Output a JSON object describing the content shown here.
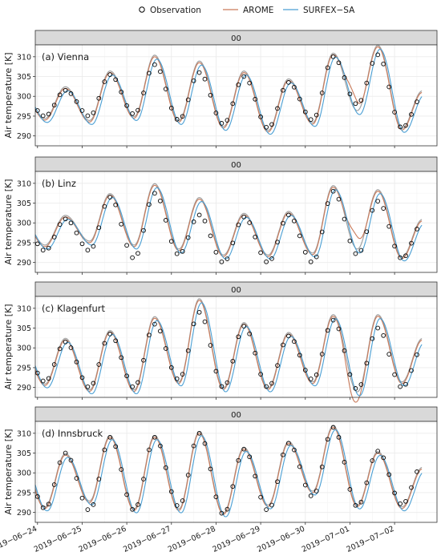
{
  "legend": {
    "observation_label": "Observation",
    "arome_label": "AROME",
    "surfex_label": "SURFEX−SA"
  },
  "colors": {
    "observation": "#000000",
    "arome": "#c97a5a",
    "surfex": "#4a9fd4",
    "grey_model": "#8a8a8a",
    "strip_bg": "#d9d9d9",
    "grid": "#ebebeb"
  },
  "chart_data": {
    "type": "line",
    "facet_strip_label": "00",
    "ylabel": "Air temperature [K]",
    "x_tick_labels": [
      "2019−06−24",
      "2019−06−25",
      "2019−06−26",
      "2019−06−27",
      "2019−06−28",
      "2019−06−29",
      "2019−06−30",
      "2019−07−01",
      "2019−07−02"
    ],
    "x_days": [
      0,
      1,
      2,
      3,
      4,
      5,
      6,
      7,
      8
    ],
    "xlim_days": [
      -0.05,
      8.95
    ],
    "y_ticks": [
      290,
      295,
      300,
      305,
      310
    ],
    "ylim": [
      287.5,
      313
    ],
    "grid": true,
    "legend_position": "top",
    "series_names": [
      "Observation",
      "AROME",
      "SURFEX−SA"
    ],
    "panels": [
      {
        "label": "(a) Vienna",
        "min": [
          295,
          295,
          295.5,
          294,
          293,
          292,
          294,
          298,
          292
        ],
        "max": [
          301.5,
          305.5,
          308,
          306,
          305,
          303.5,
          310,
          310.5,
          300
        ],
        "model_max_offset": [
          0.5,
          0.5,
          2,
          2.5,
          1,
          0.5,
          0.5,
          2,
          1
        ],
        "model_min_offset": [
          -1,
          -1.5,
          -1,
          -0.5,
          -1,
          -1,
          -1,
          -2,
          -0.5
        ],
        "arome_bump_day": 7.05,
        "arome_bump": 4
      },
      {
        "label": "(b) Linz",
        "min": [
          293,
          293,
          291,
          292,
          290,
          290,
          290,
          292,
          291
        ],
        "max": [
          301,
          306.5,
          307.5,
          302,
          301.5,
          302,
          308,
          305.5,
          300
        ],
        "model_max_offset": [
          0.5,
          0.5,
          2,
          4,
          0.5,
          0.5,
          1,
          2.5,
          0.5
        ],
        "model_min_offset": [
          1,
          2,
          3,
          1,
          1.5,
          1.5,
          2,
          1,
          0
        ],
        "arome_bump_day": 7.1,
        "arome_bump": 4
      },
      {
        "label": "(c) Klagenfurt",
        "min": [
          291.5,
          290,
          290,
          292,
          290,
          290,
          292,
          289.5,
          290
        ],
        "max": [
          301.5,
          303.5,
          306,
          309,
          305.5,
          303,
          307,
          305,
          300
        ],
        "model_max_offset": [
          0.5,
          0.5,
          1.5,
          3,
          0.5,
          0.5,
          1,
          3,
          2
        ],
        "model_min_offset": [
          -1,
          -1,
          -1,
          -1,
          -0.5,
          -0.5,
          -1,
          -1,
          1
        ],
        "arome_bump_day": 7.05,
        "arome_bump": -3
      },
      {
        "label": "(d) Innsbruck",
        "min": [
          291,
          290.5,
          290.5,
          291.5,
          289.5,
          290.5,
          294,
          291.5,
          292
        ],
        "max": [
          305,
          309,
          309,
          310,
          306,
          307.5,
          311.5,
          305.5,
          302
        ],
        "model_max_offset": [
          -0.5,
          0,
          0,
          0,
          0,
          0,
          0,
          -0.5,
          -1
        ],
        "model_min_offset": [
          0,
          2,
          0,
          -1,
          0,
          1,
          1,
          0,
          -1
        ],
        "arome_bump_day": 7.05,
        "arome_bump": 0
      }
    ]
  }
}
